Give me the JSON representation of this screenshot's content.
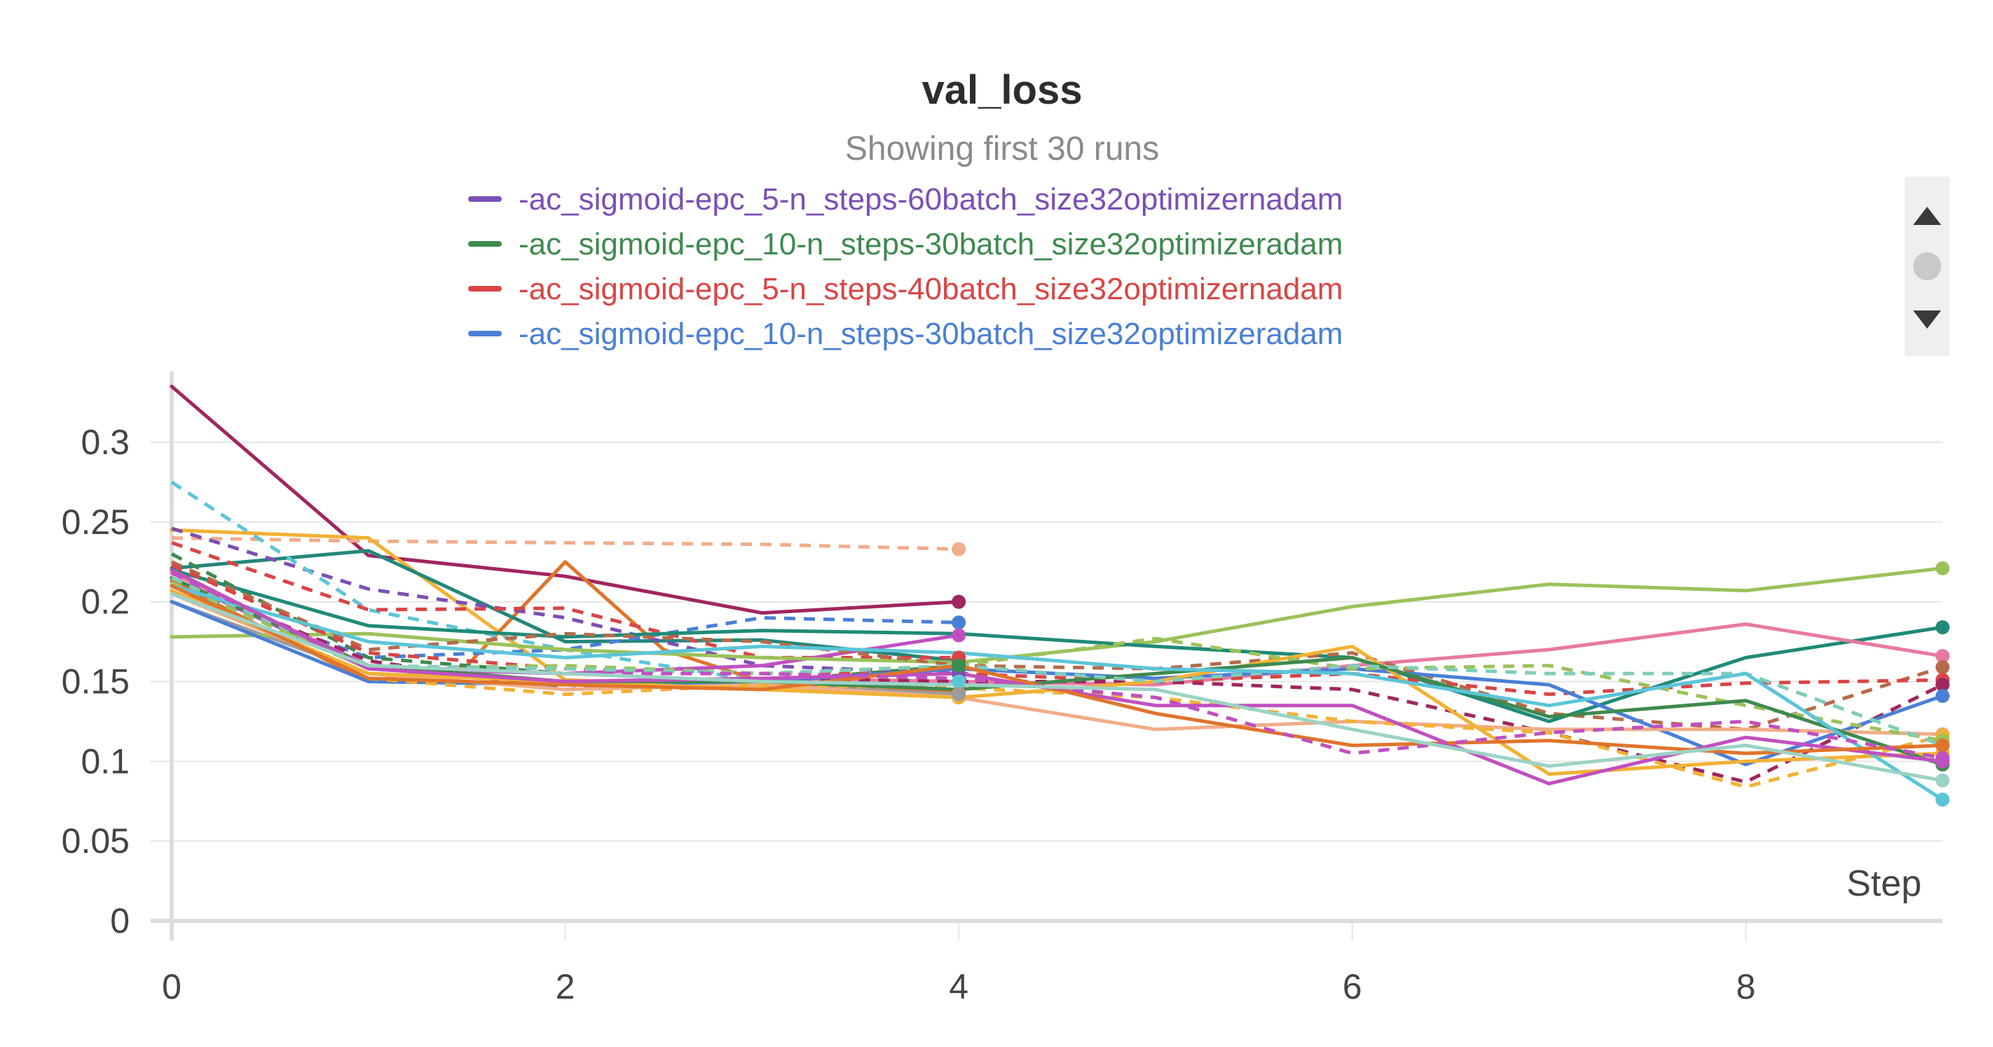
{
  "chart_data": {
    "type": "line",
    "title": "val_loss",
    "subtitle": "Showing first 30 runs",
    "xlabel": "Step",
    "ylabel": "",
    "xlim": [
      0,
      9
    ],
    "ylim": [
      0,
      0.34
    ],
    "xticks": [
      0,
      2,
      4,
      6,
      8
    ],
    "xtick_labels": [
      "0",
      "2",
      "4",
      "6",
      "8"
    ],
    "yticks": [
      0,
      0.05,
      0.1,
      0.15,
      0.2,
      0.25,
      0.3
    ],
    "ytick_labels": [
      "0",
      "0.05",
      "0.1",
      "0.15",
      "0.2",
      "0.25",
      "0.3"
    ],
    "grid": true,
    "legend": {
      "placement": "top-center",
      "entries": [
        {
          "label": "-ac_sigmoid-epc_5-n_steps-60batch_size32optimizernadam",
          "color": "#7b4fb5",
          "dash": "solid"
        },
        {
          "label": "-ac_sigmoid-epc_10-n_steps-30batch_size32optimizeradam",
          "color": "#3e8a4f",
          "dash": "solid"
        },
        {
          "label": "-ac_sigmoid-epc_5-n_steps-40batch_size32optimizernadam",
          "color": "#d94545",
          "dash": "solid"
        },
        {
          "label": "-ac_sigmoid-epc_10-n_steps-30batch_size32optimizeradam",
          "color": "#4a7fd6",
          "dash": "solid"
        }
      ]
    },
    "series": [
      {
        "color": "#a0265f",
        "dash": "solid",
        "x": [
          0,
          1,
          2,
          3,
          4
        ],
        "values": [
          0.335,
          0.229,
          0.216,
          0.193,
          0.2
        ]
      },
      {
        "color": "#f0ad88",
        "dash": "dashed",
        "x": [
          0,
          1,
          2,
          3,
          4
        ],
        "values": [
          0.24,
          0.238,
          0.237,
          0.236,
          0.233
        ]
      },
      {
        "color": "#f2b134",
        "dash": "solid",
        "x": [
          0,
          1,
          2,
          3,
          4
        ],
        "values": [
          0.245,
          0.24,
          0.151,
          0.147,
          0.14
        ]
      },
      {
        "color": "#e0742b",
        "dash": "solid",
        "x": [
          0,
          1,
          1.5,
          2,
          2.5,
          3,
          4
        ],
        "values": [
          0.213,
          0.15,
          0.16,
          0.225,
          0.17,
          0.15,
          0.143
        ]
      },
      {
        "color": "#22877a",
        "dash": "solid",
        "x": [
          0,
          1,
          2,
          3,
          4
        ],
        "values": [
          0.221,
          0.232,
          0.175,
          0.176,
          0.163
        ]
      },
      {
        "color": "#7b4fb5",
        "dash": "dashed",
        "x": [
          0,
          1,
          2,
          3,
          4
        ],
        "values": [
          0.246,
          0.208,
          0.19,
          0.16,
          0.155
        ]
      },
      {
        "color": "#4a7fd6",
        "dash": "dashed",
        "x": [
          0,
          1,
          2,
          3,
          4
        ],
        "values": [
          0.21,
          0.165,
          0.17,
          0.19,
          0.187
        ]
      },
      {
        "color": "#5bc5d8",
        "dash": "dashed",
        "x": [
          0,
          1,
          2,
          3,
          4
        ],
        "values": [
          0.275,
          0.195,
          0.17,
          0.15,
          0.15
        ]
      },
      {
        "color": "#d94545",
        "dash": "dashed",
        "x": [
          0,
          1,
          2,
          3,
          4
        ],
        "values": [
          0.237,
          0.195,
          0.196,
          0.165,
          0.165
        ]
      },
      {
        "color": "#c050c0",
        "dash": "solid",
        "x": [
          0,
          1,
          2,
          3,
          4
        ],
        "values": [
          0.215,
          0.158,
          0.155,
          0.16,
          0.179
        ]
      },
      {
        "color": "#3e8a4f",
        "dash": "dashed",
        "x": [
          0,
          1,
          2,
          3,
          4
        ],
        "values": [
          0.23,
          0.165,
          0.155,
          0.15,
          0.16
        ]
      },
      {
        "color": "#9c9c9c",
        "dash": "solid",
        "x": [
          0,
          1,
          2,
          3,
          4
        ],
        "values": [
          0.2,
          0.155,
          0.15,
          0.148,
          0.142
        ]
      },
      {
        "color": "#9bc25a",
        "dash": "solid",
        "x": [
          0,
          1,
          2,
          3,
          4,
          5,
          6,
          7,
          8,
          9
        ],
        "values": [
          0.178,
          0.18,
          0.17,
          0.165,
          0.162,
          0.175,
          0.197,
          0.211,
          0.207,
          0.221
        ]
      },
      {
        "color": "#1f8a78",
        "dash": "solid",
        "x": [
          0,
          1,
          2,
          3,
          4,
          5,
          6,
          7,
          8,
          9
        ],
        "values": [
          0.22,
          0.185,
          0.178,
          0.182,
          0.18,
          0.172,
          0.165,
          0.125,
          0.165,
          0.184
        ]
      },
      {
        "color": "#e879a1",
        "dash": "solid",
        "x": [
          0,
          1,
          2,
          3,
          4,
          5,
          6,
          7,
          8,
          9
        ],
        "values": [
          0.218,
          0.16,
          0.15,
          0.152,
          0.15,
          0.148,
          0.16,
          0.17,
          0.186,
          0.166
        ]
      },
      {
        "color": "#b56b4a",
        "dash": "dashed",
        "x": [
          0,
          1,
          2,
          3,
          4,
          5,
          6,
          7,
          8,
          9
        ],
        "values": [
          0.225,
          0.17,
          0.18,
          0.175,
          0.16,
          0.158,
          0.168,
          0.13,
          0.12,
          0.159
        ]
      },
      {
        "color": "#d94545",
        "dash": "dashed",
        "x": [
          0,
          1,
          2,
          3,
          4,
          5,
          6,
          7,
          8,
          9
        ],
        "values": [
          0.223,
          0.168,
          0.158,
          0.155,
          0.155,
          0.15,
          0.155,
          0.142,
          0.149,
          0.151
        ]
      },
      {
        "color": "#a0265f",
        "dash": "dashed",
        "x": [
          0,
          1,
          2,
          3,
          4,
          5,
          6,
          7,
          8,
          9
        ],
        "values": [
          0.215,
          0.163,
          0.145,
          0.152,
          0.15,
          0.15,
          0.145,
          0.118,
          0.087,
          0.148
        ]
      },
      {
        "color": "#4a7fd6",
        "dash": "solid",
        "x": [
          0,
          1,
          2,
          3,
          4,
          5,
          6,
          7,
          8,
          9
        ],
        "values": [
          0.2,
          0.15,
          0.148,
          0.15,
          0.158,
          0.152,
          0.158,
          0.148,
          0.098,
          0.141
        ]
      },
      {
        "color": "#f0ad88",
        "dash": "solid",
        "x": [
          0,
          1,
          2,
          3,
          4,
          5,
          6,
          7,
          8,
          9
        ],
        "values": [
          0.205,
          0.155,
          0.145,
          0.148,
          0.14,
          0.12,
          0.125,
          0.12,
          0.12,
          0.117
        ]
      },
      {
        "color": "#f2b134",
        "dash": "dashed",
        "x": [
          0,
          1,
          2,
          3,
          4,
          5,
          6,
          7,
          8,
          9
        ],
        "values": [
          0.21,
          0.152,
          0.142,
          0.148,
          0.146,
          0.14,
          0.125,
          0.118,
          0.084,
          0.116
        ]
      },
      {
        "color": "#f2b134",
        "dash": "solid",
        "x": [
          0,
          1,
          2,
          3,
          4,
          5,
          6,
          7,
          8,
          9
        ],
        "values": [
          0.207,
          0.155,
          0.15,
          0.145,
          0.14,
          0.15,
          0.172,
          0.092,
          0.1,
          0.105
        ]
      },
      {
        "color": "#9bc25a",
        "dash": "dashed",
        "x": [
          0,
          1,
          2,
          3,
          4,
          5,
          6,
          7,
          8,
          9
        ],
        "values": [
          0.212,
          0.158,
          0.16,
          0.155,
          0.16,
          0.177,
          0.158,
          0.16,
          0.135,
          0.113
        ]
      },
      {
        "color": "#3e8a4f",
        "dash": "solid",
        "x": [
          0,
          1,
          2,
          3,
          4,
          5,
          6,
          7,
          8,
          9
        ],
        "values": [
          0.215,
          0.16,
          0.15,
          0.15,
          0.145,
          0.155,
          0.165,
          0.128,
          0.138,
          0.098
        ]
      },
      {
        "color": "#7fcdb9",
        "dash": "dashed",
        "x": [
          0,
          1,
          2,
          3,
          4,
          5,
          6,
          7,
          8,
          9
        ],
        "values": [
          0.215,
          0.16,
          0.158,
          0.155,
          0.16,
          0.15,
          0.16,
          0.155,
          0.155,
          0.11
        ]
      },
      {
        "color": "#5bc5d8",
        "dash": "solid",
        "x": [
          0,
          1,
          2,
          3,
          4,
          5,
          6,
          7,
          8,
          9
        ],
        "values": [
          0.21,
          0.175,
          0.165,
          0.172,
          0.168,
          0.158,
          0.155,
          0.135,
          0.155,
          0.076
        ]
      },
      {
        "color": "#c050c0",
        "dash": "solid",
        "x": [
          0,
          1,
          2,
          3,
          4,
          5,
          6,
          7,
          8,
          9
        ],
        "values": [
          0.22,
          0.158,
          0.15,
          0.152,
          0.155,
          0.135,
          0.135,
          0.086,
          0.115,
          0.1
        ]
      },
      {
        "color": "#e0742b",
        "dash": "solid",
        "x": [
          0,
          1,
          2,
          3,
          4,
          5,
          6,
          7,
          8,
          9
        ],
        "values": [
          0.21,
          0.152,
          0.148,
          0.145,
          0.16,
          0.13,
          0.11,
          0.113,
          0.105,
          0.11
        ]
      },
      {
        "color": "#c050c0",
        "dash": "dashed",
        "x": [
          0,
          1,
          2,
          3,
          4,
          5,
          6,
          7,
          8,
          9
        ],
        "values": [
          0.218,
          0.16,
          0.155,
          0.155,
          0.152,
          0.14,
          0.105,
          0.118,
          0.125,
          0.102
        ]
      },
      {
        "color": "#9bd3c6",
        "dash": "solid",
        "x": [
          0,
          1,
          2,
          3,
          4,
          5,
          6,
          7,
          8,
          9
        ],
        "values": [
          0.205,
          0.16,
          0.155,
          0.15,
          0.148,
          0.145,
          0.12,
          0.097,
          0.11,
          0.088
        ]
      }
    ]
  },
  "legend_scroller": {
    "up_icon": "triangle-up-icon",
    "position_icon": "circle-icon",
    "down_icon": "triangle-down-icon"
  }
}
